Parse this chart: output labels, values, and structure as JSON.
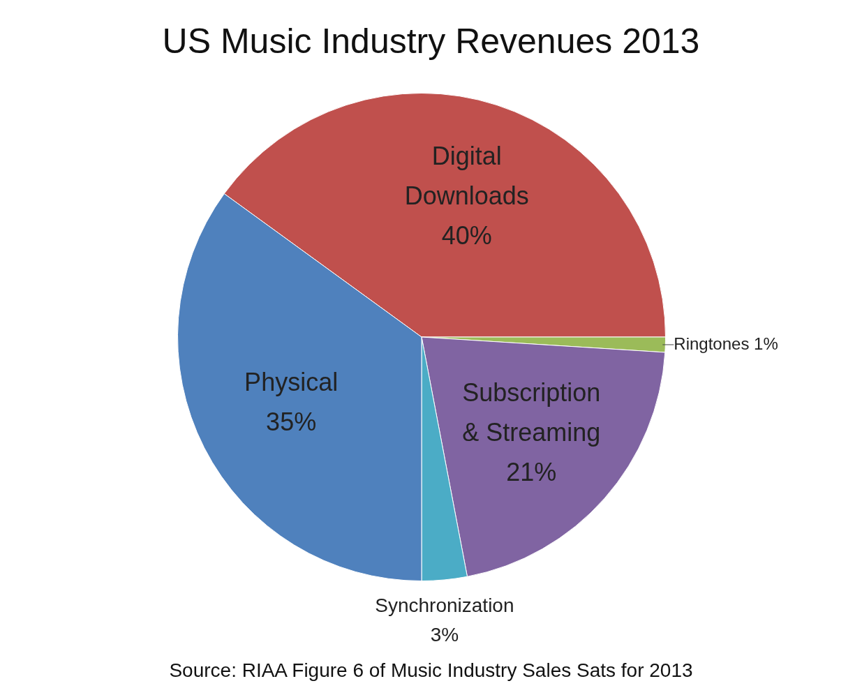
{
  "chart_data": {
    "type": "pie",
    "title": "US Music Industry Revenues 2013",
    "categories": [
      "Digital Downloads",
      "Ringtones",
      "Subscription & Streaming",
      "Synchronization",
      "Physical"
    ],
    "values": [
      40,
      1,
      21,
      3,
      35
    ],
    "colors": [
      "#c0504d",
      "#9bbb59",
      "#8064a2",
      "#4bacc6",
      "#4f81bd"
    ],
    "value_labels": [
      "40%",
      "1%",
      "21%",
      "3%",
      "35%"
    ],
    "legend": false,
    "annotations": [
      "Source: RIAA Figure 6 of Music Industry Sales Sats for 2013"
    ]
  }
}
